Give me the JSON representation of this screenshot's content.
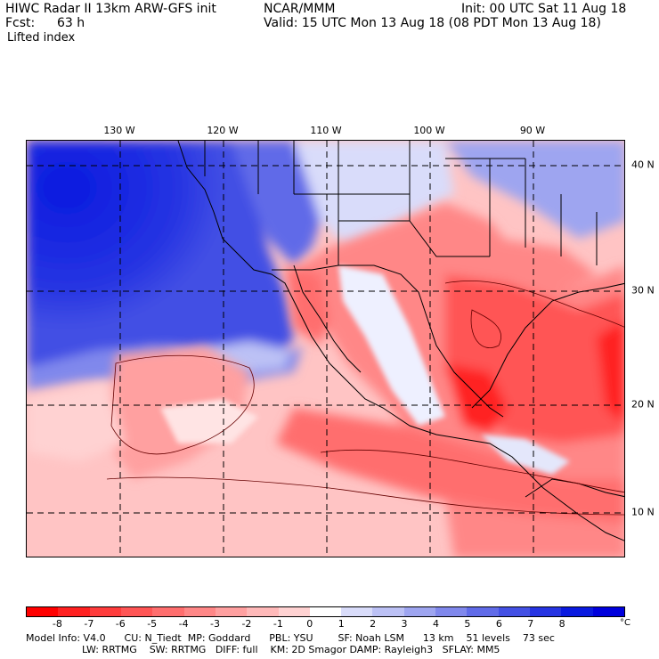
{
  "header": {
    "model_title": "HIWC Radar II 13km ARW-GFS init",
    "org": "NCAR/MMM",
    "init": "Init: 00 UTC Sat 11 Aug 18",
    "fcst_label": "Fcst:",
    "fcst_value": "63 h",
    "valid": "Valid: 15 UTC Mon 13 Aug 18 (08 PDT Mon 13 Aug 18)",
    "field": "Lifted index"
  },
  "map": {
    "lon_labels": [
      "130 W",
      "120 W",
      "110 W",
      "100 W",
      "90 W"
    ],
    "lat_labels": [
      "40 N",
      "30 N",
      "20 N",
      "10 N"
    ]
  },
  "colorbar": {
    "ticks": [
      "-8",
      "-7",
      "-6",
      "-5",
      "-4",
      "-3",
      "-2",
      "-1",
      "0",
      "1",
      "2",
      "3",
      "4",
      "5",
      "6",
      "7",
      "8"
    ],
    "unit": "°C",
    "colors": [
      "#ff0000",
      "#ff2020",
      "#ff3c3c",
      "#ff5555",
      "#ff6e6e",
      "#ff8787",
      "#ffa0a0",
      "#ffb9b9",
      "#ffd2d2",
      "#ffffff",
      "#d9dcfa",
      "#bcc1f5",
      "#9ea5f0",
      "#8088ec",
      "#606be8",
      "#4350e4",
      "#2634e2",
      "#0a1ae0",
      "#0000dd"
    ]
  },
  "model_info": {
    "line1": "Model Info: V4.0      CU: N_Tiedt  MP: Goddard      PBL: YSU        SF: Noah LSM      13 km    51 levels    73 sec",
    "line2": "                  LW: RRTMG    SW: RRTMG   DIFF: full    KM: 2D Smagor DAMP: Rayleigh3   SFLAY: MM5"
  }
}
